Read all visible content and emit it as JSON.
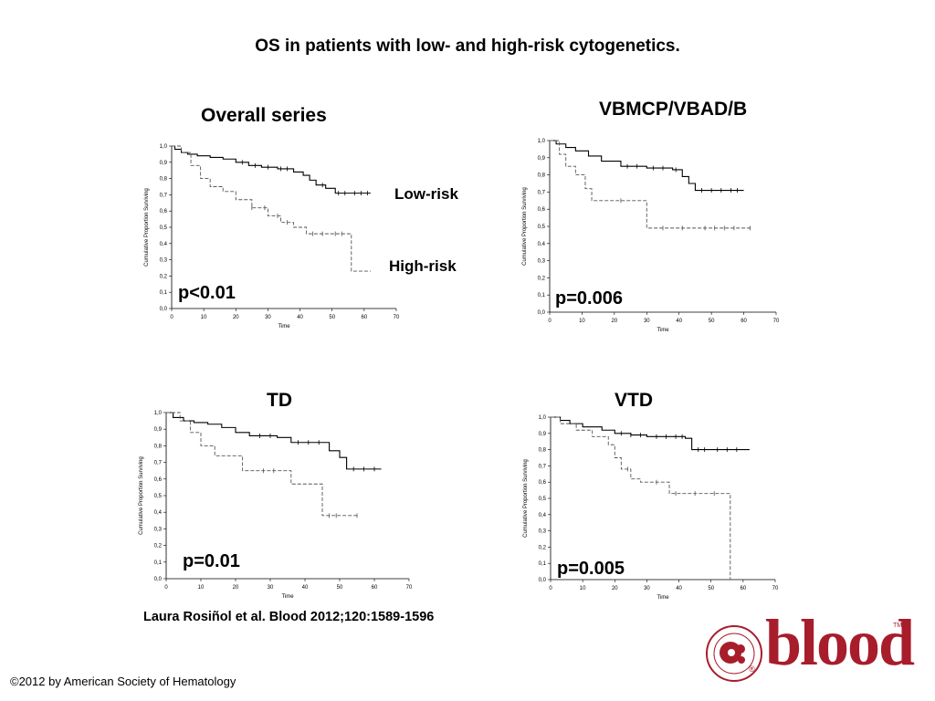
{
  "title": "OS in patients with low- and high-risk cytogenetics.",
  "citation": "Laura Rosiñol et al. Blood 2012;120:1589-1596",
  "copyright": "©2012 by American Society of Hematology",
  "logo": {
    "text": "blood",
    "society": "AMERICAN SOCIETY OF HEMATOLOGY",
    "trademark": "TM",
    "registered": "®",
    "color": "#a81d2b"
  },
  "series_labels": {
    "low": "Low-risk",
    "high": "High-risk"
  },
  "chart_data": [
    {
      "type": "line",
      "title": "Overall series",
      "xlabel": "Time",
      "ylabel": "Cumulative Proportion Surviving",
      "xlim": [
        0,
        70
      ],
      "ylim": [
        0,
        1
      ],
      "x_ticks": [
        "0",
        "10",
        "20",
        "30",
        "40",
        "50",
        "60",
        "70"
      ],
      "y_ticks": [
        "0,0",
        "0,1",
        "0,2",
        "0,3",
        "0,4",
        "0,5",
        "0,6",
        "0,7",
        "0,8",
        "0,9",
        "1,0"
      ],
      "p_value": "p<0.01",
      "series": [
        {
          "name": "Low-risk",
          "style": "solid",
          "points": [
            [
              0,
              1.0
            ],
            [
              1,
              0.98
            ],
            [
              3,
              0.96
            ],
            [
              5,
              0.95
            ],
            [
              8,
              0.94
            ],
            [
              12,
              0.93
            ],
            [
              16,
              0.92
            ],
            [
              20,
              0.9
            ],
            [
              24,
              0.88
            ],
            [
              28,
              0.87
            ],
            [
              33,
              0.86
            ],
            [
              38,
              0.84
            ],
            [
              41,
              0.82
            ],
            [
              43,
              0.79
            ],
            [
              45,
              0.76
            ],
            [
              48,
              0.74
            ],
            [
              51,
              0.71
            ],
            [
              56,
              0.71
            ],
            [
              62,
              0.71
            ]
          ],
          "censors": [
            22,
            26,
            30,
            34,
            36,
            47,
            52,
            54,
            57,
            59,
            61
          ]
        },
        {
          "name": "High-risk",
          "style": "dashed",
          "points": [
            [
              0,
              1.0
            ],
            [
              3,
              0.96
            ],
            [
              6,
              0.88
            ],
            [
              9,
              0.8
            ],
            [
              12,
              0.75
            ],
            [
              16,
              0.72
            ],
            [
              20,
              0.67
            ],
            [
              25,
              0.62
            ],
            [
              30,
              0.57
            ],
            [
              34,
              0.53
            ],
            [
              38,
              0.5
            ],
            [
              42,
              0.46
            ],
            [
              52,
              0.46
            ],
            [
              55,
              0.46
            ],
            [
              56,
              0.23
            ],
            [
              62,
              0.23
            ]
          ],
          "censors": [
            25,
            29,
            33,
            36,
            44,
            47,
            51,
            53
          ]
        }
      ]
    },
    {
      "type": "line",
      "title": "VBMCP/VBAD/B",
      "xlabel": "Time",
      "ylabel": "Cumulative Proportion Surviving",
      "xlim": [
        0,
        70
      ],
      "ylim": [
        0,
        1
      ],
      "x_ticks": [
        "0",
        "10",
        "20",
        "30",
        "40",
        "50",
        "60",
        "70"
      ],
      "y_ticks": [
        "0,0",
        "0,1",
        "0,2",
        "0,3",
        "0,4",
        "0,5",
        "0,6",
        "0,7",
        "0,8",
        "0,9",
        "1,0"
      ],
      "p_value": "p=0.006",
      "series": [
        {
          "name": "Low-risk",
          "style": "solid",
          "points": [
            [
              0,
              1.0
            ],
            [
              2,
              0.98
            ],
            [
              5,
              0.96
            ],
            [
              8,
              0.94
            ],
            [
              12,
              0.91
            ],
            [
              16,
              0.88
            ],
            [
              22,
              0.85
            ],
            [
              30,
              0.84
            ],
            [
              38,
              0.83
            ],
            [
              41,
              0.79
            ],
            [
              43,
              0.75
            ],
            [
              45,
              0.71
            ],
            [
              52,
              0.71
            ],
            [
              60,
              0.71
            ]
          ],
          "censors": [
            24,
            27,
            32,
            35,
            39,
            47,
            50,
            53,
            56,
            58
          ]
        },
        {
          "name": "High-risk",
          "style": "dashed",
          "points": [
            [
              0,
              1.0
            ],
            [
              3,
              0.92
            ],
            [
              5,
              0.85
            ],
            [
              8,
              0.8
            ],
            [
              11,
              0.72
            ],
            [
              13,
              0.65
            ],
            [
              25,
              0.65
            ],
            [
              30,
              0.49
            ],
            [
              45,
              0.49
            ],
            [
              62,
              0.49
            ]
          ],
          "censors": [
            22,
            35,
            41,
            48,
            51,
            54,
            57,
            62
          ]
        }
      ]
    },
    {
      "type": "line",
      "title": "TD",
      "xlabel": "Time",
      "ylabel": "Cumulative Proportion Surviving",
      "xlim": [
        0,
        70
      ],
      "ylim": [
        0,
        1
      ],
      "x_ticks": [
        "0",
        "10",
        "20",
        "30",
        "40",
        "50",
        "60",
        "70"
      ],
      "y_ticks": [
        "0,0",
        "0,1",
        "0,2",
        "0,3",
        "0,4",
        "0,5",
        "0,6",
        "0,7",
        "0,8",
        "0,9",
        "1,0"
      ],
      "p_value": "p=0.01",
      "series": [
        {
          "name": "Low-risk",
          "style": "solid",
          "points": [
            [
              0,
              1.0
            ],
            [
              2,
              0.97
            ],
            [
              5,
              0.95
            ],
            [
              8,
              0.94
            ],
            [
              12,
              0.93
            ],
            [
              16,
              0.91
            ],
            [
              20,
              0.88
            ],
            [
              24,
              0.86
            ],
            [
              32,
              0.85
            ],
            [
              36,
              0.82
            ],
            [
              44,
              0.82
            ],
            [
              47,
              0.77
            ],
            [
              50,
              0.73
            ],
            [
              52,
              0.66
            ],
            [
              58,
              0.66
            ],
            [
              62,
              0.66
            ]
          ],
          "censors": [
            27,
            30,
            38,
            41,
            44,
            54,
            57,
            60
          ]
        },
        {
          "name": "High-risk",
          "style": "dashed",
          "points": [
            [
              0,
              1.0
            ],
            [
              4,
              0.95
            ],
            [
              7,
              0.88
            ],
            [
              10,
              0.8
            ],
            [
              14,
              0.74
            ],
            [
              22,
              0.65
            ],
            [
              33,
              0.65
            ],
            [
              36,
              0.57
            ],
            [
              42,
              0.57
            ],
            [
              45,
              0.38
            ],
            [
              50,
              0.38
            ],
            [
              55,
              0.38
            ]
          ],
          "censors": [
            28,
            31,
            47,
            49,
            55
          ]
        }
      ]
    },
    {
      "type": "line",
      "title": "VTD",
      "xlabel": "Time",
      "ylabel": "Cumulative Proportion Surviving",
      "xlim": [
        0,
        70
      ],
      "ylim": [
        0,
        1
      ],
      "x_ticks": [
        "0",
        "10",
        "20",
        "30",
        "40",
        "50",
        "60",
        "70"
      ],
      "y_ticks": [
        "0,0",
        "0,1",
        "0,2",
        "0,3",
        "0,4",
        "0,5",
        "0,6",
        "0,7",
        "0,8",
        "0,9",
        "1,0"
      ],
      "p_value": "p=0.005",
      "series": [
        {
          "name": "Low-risk",
          "style": "solid",
          "points": [
            [
              0,
              1.0
            ],
            [
              3,
              0.98
            ],
            [
              6,
              0.96
            ],
            [
              10,
              0.94
            ],
            [
              16,
              0.92
            ],
            [
              20,
              0.9
            ],
            [
              25,
              0.89
            ],
            [
              30,
              0.88
            ],
            [
              42,
              0.87
            ],
            [
              44,
              0.8
            ],
            [
              50,
              0.8
            ],
            [
              56,
              0.8
            ],
            [
              62,
              0.8
            ]
          ],
          "censors": [
            22,
            25,
            28,
            33,
            36,
            39,
            41,
            46,
            48,
            52,
            55,
            58
          ]
        },
        {
          "name": "High-risk",
          "style": "dashed",
          "points": [
            [
              0,
              1.0
            ],
            [
              3,
              0.96
            ],
            [
              8,
              0.92
            ],
            [
              13,
              0.88
            ],
            [
              18,
              0.83
            ],
            [
              20,
              0.75
            ],
            [
              22,
              0.68
            ],
            [
              25,
              0.62
            ],
            [
              28,
              0.6
            ],
            [
              34,
              0.6
            ],
            [
              37,
              0.53
            ],
            [
              56,
              0.53
            ],
            [
              56,
              0.0
            ]
          ],
          "censors": [
            24,
            33,
            39,
            45,
            51
          ]
        }
      ]
    }
  ]
}
